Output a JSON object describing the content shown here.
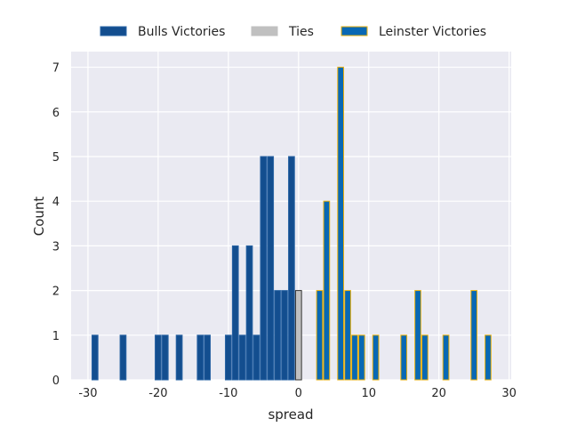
{
  "chart_data": {
    "type": "bar",
    "title": "",
    "xlabel": "spread",
    "ylabel": "Count",
    "xlim": [
      -32.4,
      30.3
    ],
    "ylim": [
      0,
      7.35
    ],
    "xticks": [
      -30,
      -20,
      -10,
      0,
      10,
      20,
      30
    ],
    "yticks": [
      0,
      1,
      2,
      3,
      4,
      5,
      6,
      7
    ],
    "grid": true,
    "legend_placement": "top-center",
    "bar_width": 0.85,
    "series": [
      {
        "name": "Bulls Victories",
        "color": "#134e8f",
        "edge": "#2a64a4",
        "x": [
          -29,
          -25,
          -20,
          -19,
          -17,
          -14,
          -13,
          -10,
          -9,
          -8,
          -7,
          -6,
          -5,
          -4,
          -3,
          -2,
          -1
        ],
        "values": [
          1,
          1,
          1,
          1,
          1,
          1,
          1,
          1,
          3,
          1,
          3,
          1,
          5,
          5,
          2,
          2,
          5
        ]
      },
      {
        "name": "Ties",
        "color": "#c0c0c0",
        "edge": "#333333",
        "x": [
          0
        ],
        "values": [
          2
        ]
      },
      {
        "name": "Leinster Victories",
        "color": "#0868b4",
        "edge": "#e8b00e",
        "x": [
          3,
          4,
          6,
          7,
          8,
          9,
          11,
          15,
          17,
          18,
          21,
          25,
          27
        ],
        "values": [
          2,
          4,
          7,
          2,
          1,
          1,
          1,
          1,
          2,
          1,
          1,
          2,
          1
        ]
      }
    ]
  }
}
